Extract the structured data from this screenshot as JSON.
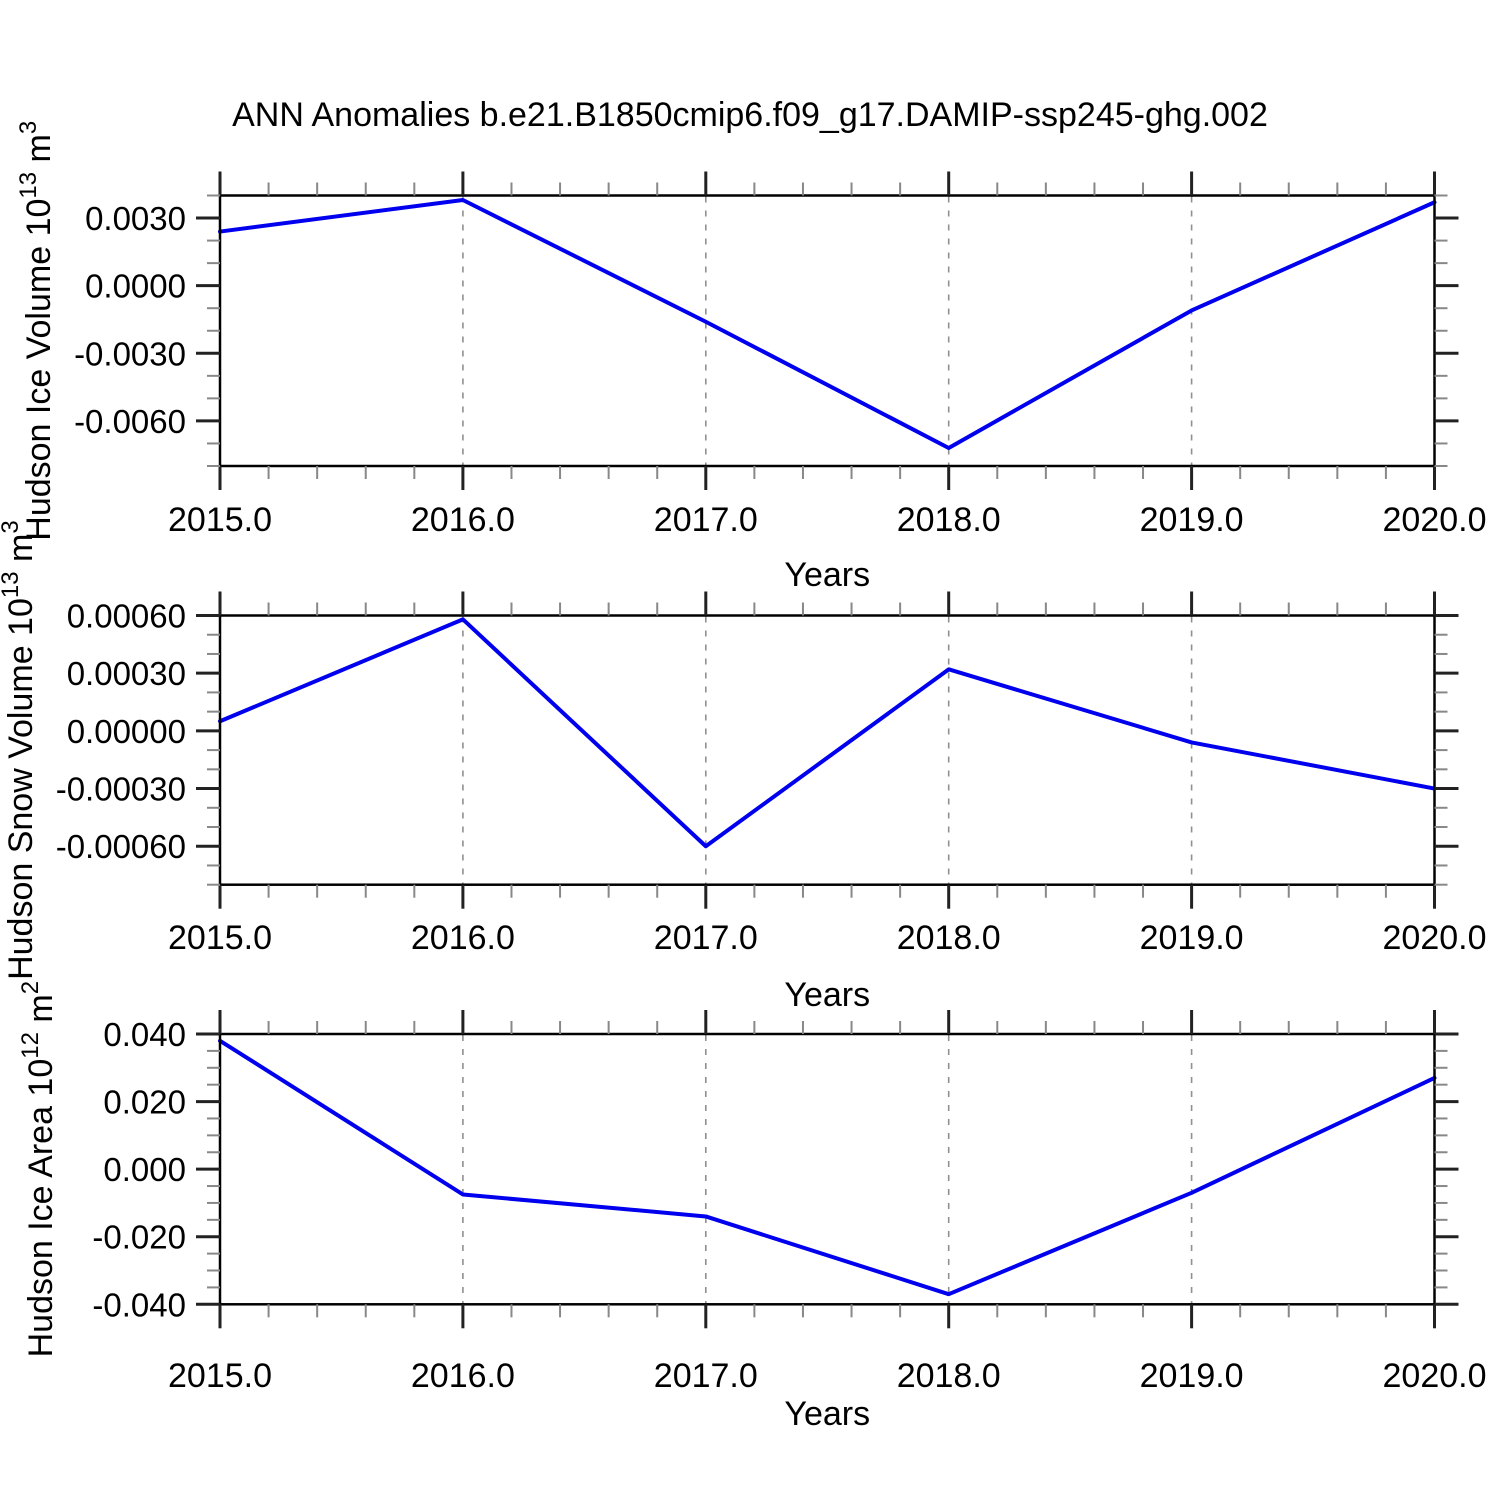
{
  "title": "ANN Anomalies b.e21.B1850cmip6.f09_g17.DAMIP-ssp245-ghg.002",
  "colors": {
    "line": "#0000EE",
    "frame": "#000000",
    "major_tick": "#222222",
    "minor_tick": "#888888",
    "dashed_gridline": "#909090",
    "text": "#000000"
  },
  "x_axis": {
    "label": "Years",
    "min": 2015.0,
    "max": 2020.0,
    "major_step": 1.0,
    "minor_step": 0.2,
    "tick_labels": [
      "2015.0",
      "2016.0",
      "2017.0",
      "2018.0",
      "2019.0",
      "2020.0"
    ],
    "dashed_gridlines": [
      2016,
      2017,
      2018,
      2019
    ]
  },
  "chart_data": [
    {
      "type": "line",
      "ylabel": "Hudson Ice Volume 10^13 m^3",
      "ylabel_parts": [
        {
          "t": "Hudson Ice Volume 10",
          "sup": false
        },
        {
          "t": "13",
          "sup": true
        },
        {
          "t": " m",
          "sup": false
        },
        {
          "t": "3",
          "sup": true
        }
      ],
      "x": [
        2015,
        2016,
        2017,
        2018,
        2019,
        2020
      ],
      "values": [
        0.0024,
        0.0038,
        -0.0016,
        -0.0072,
        -0.0011,
        0.0037
      ],
      "ylim": [
        -0.008,
        0.004
      ],
      "y_major_ticks": [
        0.003,
        0.0,
        -0.003,
        -0.006
      ],
      "y_tick_labels": [
        "0.0030",
        "0.0000",
        "-0.0030",
        "-0.0060"
      ],
      "y_minor_step": 0.001
    },
    {
      "type": "line",
      "ylabel": "Hudson Snow Volume 10^13 m^3",
      "ylabel_parts": [
        {
          "t": "Hudson Snow Volume 10",
          "sup": false
        },
        {
          "t": "13",
          "sup": true
        },
        {
          "t": " m",
          "sup": false
        },
        {
          "t": "3",
          "sup": true
        }
      ],
      "x": [
        2015,
        2016,
        2017,
        2018,
        2019,
        2020
      ],
      "values": [
        5e-05,
        0.00058,
        -0.0006,
        0.00032,
        -6e-05,
        -0.0003
      ],
      "ylim": [
        -0.0008,
        0.0006
      ],
      "y_major_ticks": [
        0.0006,
        0.0003,
        0.0,
        -0.0003,
        -0.0006
      ],
      "y_tick_labels": [
        "0.00060",
        "0.00030",
        "0.00000",
        "-0.00030",
        "-0.00060"
      ],
      "y_minor_step": 0.0001
    },
    {
      "type": "line",
      "ylabel": "Hudson Ice Area 10^12 m^2",
      "ylabel_parts": [
        {
          "t": "Hudson Ice Area 10",
          "sup": false
        },
        {
          "t": "12",
          "sup": true
        },
        {
          "t": " m",
          "sup": false
        },
        {
          "t": "2",
          "sup": true
        }
      ],
      "x": [
        2015,
        2016,
        2017,
        2018,
        2019,
        2020
      ],
      "values": [
        0.038,
        -0.0075,
        -0.014,
        -0.037,
        -0.007,
        0.027
      ],
      "ylim": [
        -0.04,
        0.04
      ],
      "y_major_ticks": [
        0.04,
        0.02,
        0.0,
        -0.02,
        -0.04
      ],
      "y_tick_labels": [
        "0.040",
        "0.020",
        "0.000",
        "-0.020",
        "-0.040"
      ],
      "y_minor_step": 0.005
    }
  ]
}
